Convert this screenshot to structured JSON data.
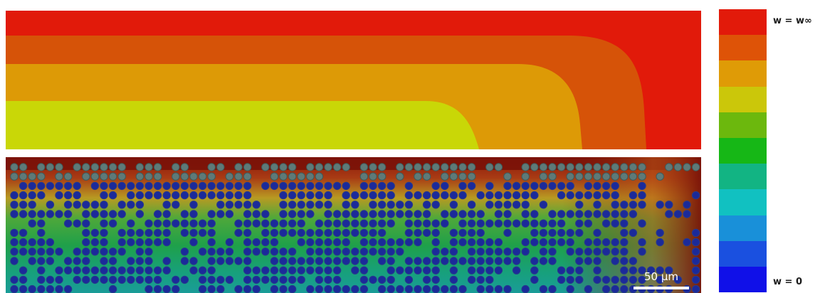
{
  "top_colors": [
    "#e11a0a",
    "#d65308",
    "#dd9a06",
    "#c9d707"
  ],
  "bottom_colors": {
    "background": "#7a1208",
    "dot_fill": "#1b2a9a",
    "dot_ring": "#5e7a78",
    "field_gradient": [
      "#8a1a0a",
      "#c8701a",
      "#b8a020",
      "#3aa03a",
      "#1aa050",
      "#18a080",
      "#1aa09a"
    ]
  },
  "colorbar": {
    "colors": [
      "#e21a0a",
      "#de5307",
      "#df9b06",
      "#cbc70a",
      "#6cb80d",
      "#16b716",
      "#12b483",
      "#11c1c1",
      "#1990d9",
      "#1a50e0",
      "#1010e8"
    ],
    "label_top": "w = w∞",
    "label_bottom": "w = 0"
  },
  "scalebar": {
    "label": "50 μm"
  }
}
